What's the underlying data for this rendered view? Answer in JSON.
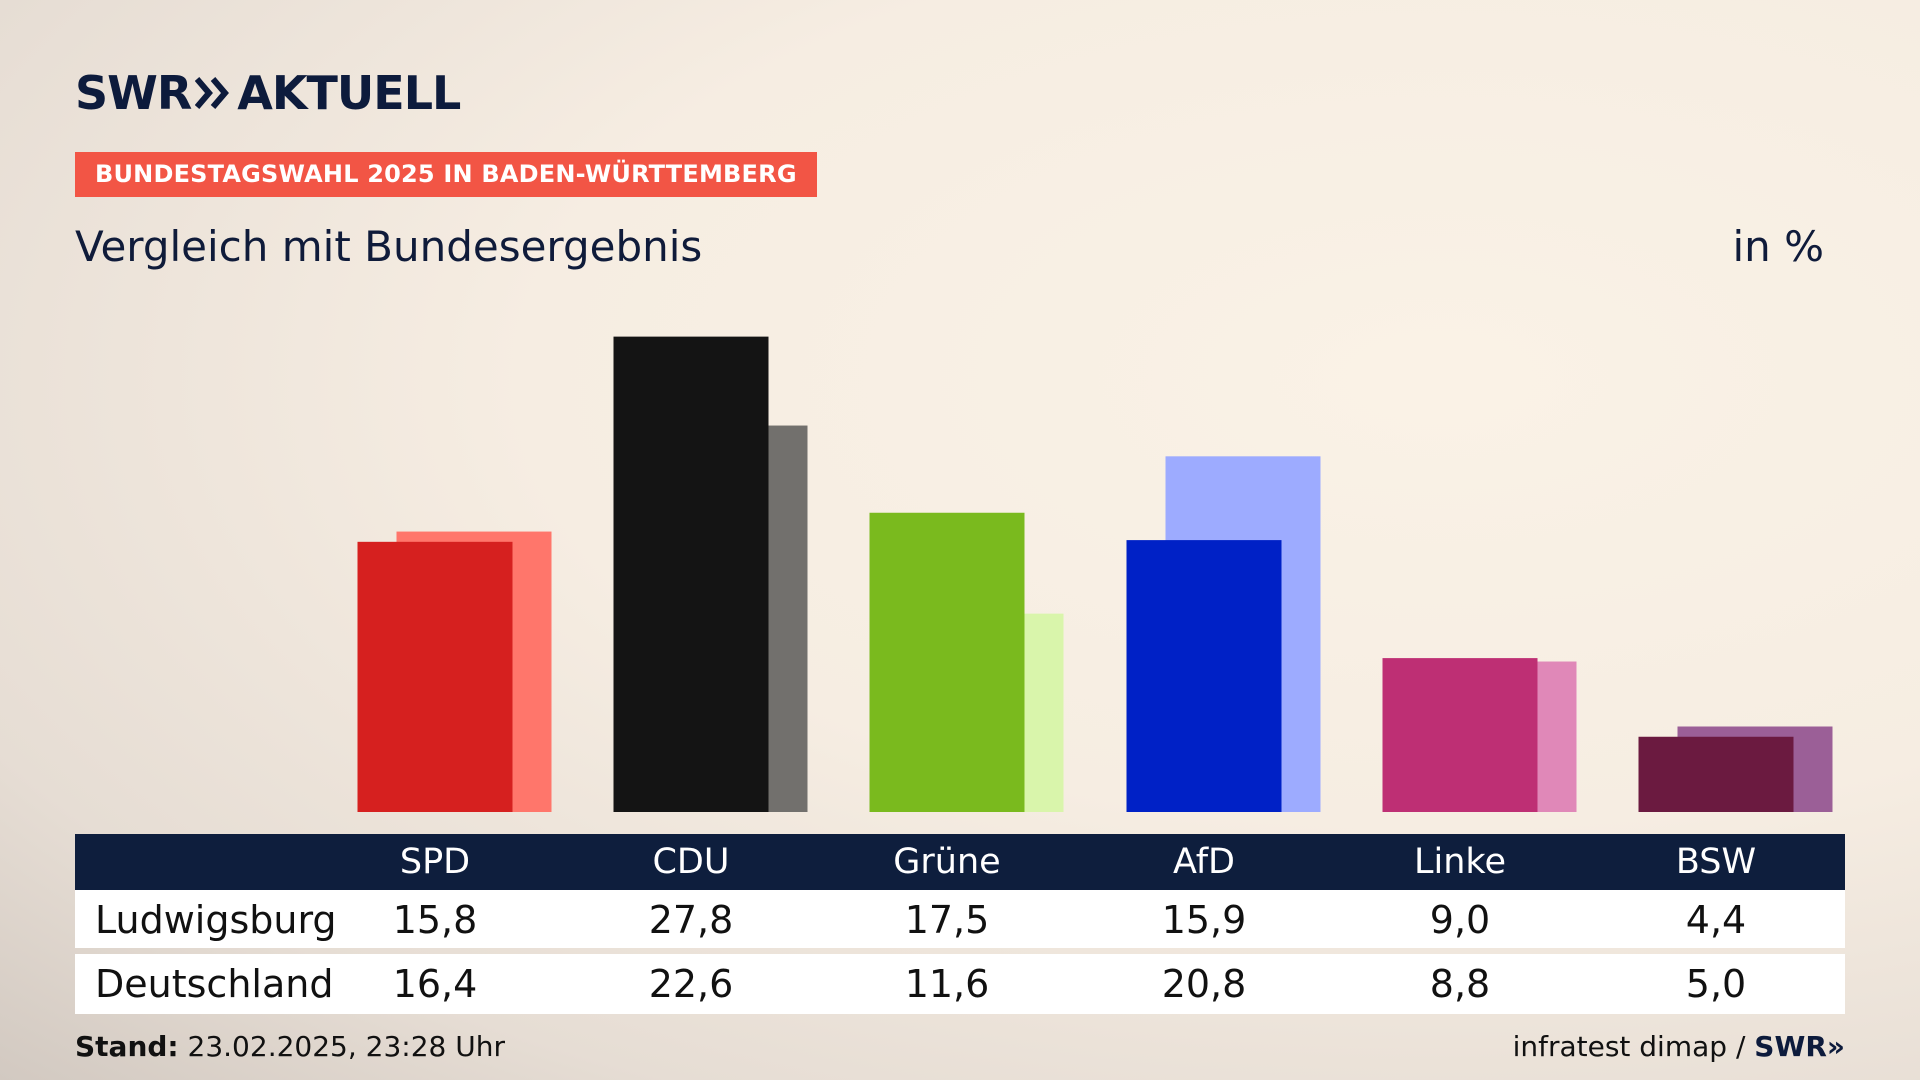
{
  "header": {
    "logo": "SWR» AKTUELL",
    "logo_left": "SWR",
    "logo_right": "AKTUELL",
    "banner": "BUNDESTAGSWAHL 2025 IN BADEN-WÜRTTEMBERG",
    "subtitle": "Vergleich mit Bundesergebnis",
    "unit": "in %"
  },
  "chart_data": {
    "type": "bar",
    "categories": [
      "SPD",
      "CDU",
      "Grüne",
      "AfD",
      "Linke",
      "BSW"
    ],
    "series": [
      {
        "name": "Ludwigsburg",
        "values": [
          15.8,
          27.8,
          17.5,
          15.9,
          9.0,
          4.4
        ],
        "colors": [
          "#d6201f",
          "#141414",
          "#7aba1e",
          "#0021c6",
          "#be2f74",
          "#6b1a40"
        ]
      },
      {
        "name": "Deutschland",
        "values": [
          16.4,
          22.6,
          11.6,
          20.8,
          8.8,
          5.0
        ],
        "colors": [
          "#ff766b",
          "#72706d",
          "#d9f5ab",
          "#9dabff",
          "#e088b8",
          "#9b5f97"
        ]
      }
    ],
    "display_values": {
      "Ludwigsburg": [
        "15,8",
        "27,8",
        "17,5",
        "15,9",
        "9,0",
        "4,4"
      ],
      "Deutschland": [
        "16,4",
        "22,6",
        "11,6",
        "20,8",
        "8,8",
        "5,0"
      ]
    },
    "ylabel": "in %",
    "grid": false
  },
  "footer": {
    "stand_label": "Stand:",
    "stand_value": "23.02.2025, 23:28 Uhr",
    "source": "infratest dimap /",
    "source_brand": "SWR»"
  },
  "colors": {
    "banner": "#f25545",
    "table_header": "#0e1e3d",
    "text": "#0f1b3a"
  }
}
